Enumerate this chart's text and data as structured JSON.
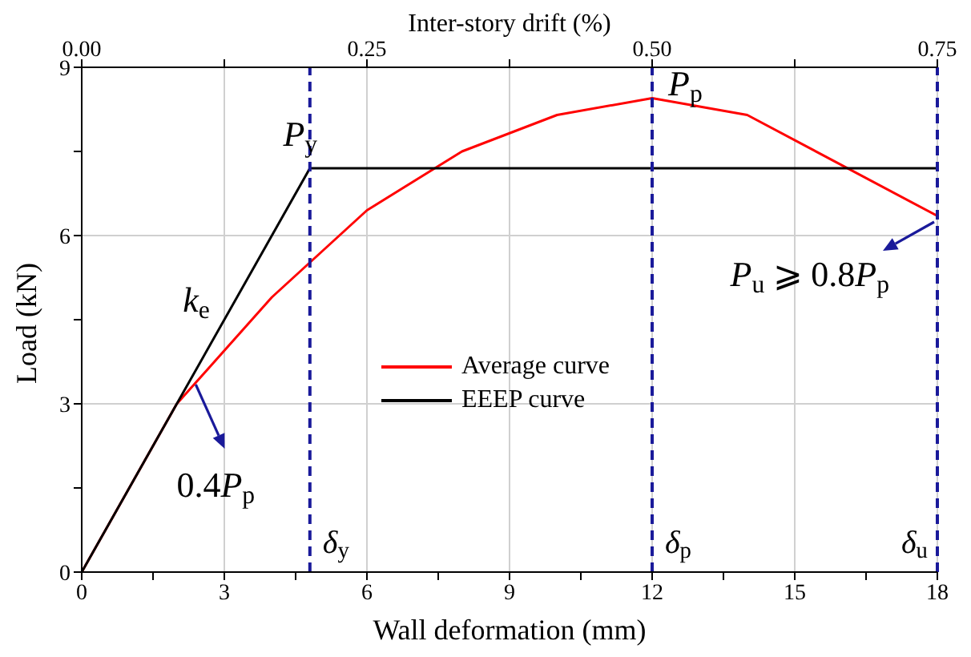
{
  "chart_data": {
    "type": "line",
    "xlabel": "Wall deformation (mm)",
    "ylabel": "Load (kN)",
    "x2label": "Inter-story drift  (%)",
    "xlim": [
      0,
      18
    ],
    "xticks": [
      0,
      {
        "value": 1.5,
        "label": null
      },
      3,
      {
        "value": 4.5,
        "label": null
      },
      6,
      {
        "value": 7.5,
        "label": null
      },
      9,
      {
        "value": 10.5,
        "label": null
      },
      12,
      {
        "value": 13.5,
        "label": null
      },
      15,
      {
        "value": 16.5,
        "label": null
      },
      18
    ],
    "ylim": [
      0,
      9
    ],
    "yticks": [
      0,
      {
        "value": 1.5,
        "label": null
      },
      3,
      {
        "value": 4.5,
        "label": null
      },
      6,
      {
        "value": 7.5,
        "label": null
      },
      9
    ],
    "x2lim": [
      0,
      0.75
    ],
    "x2ticks": [
      {
        "value": 0,
        "label": "0.00"
      },
      {
        "value": 0.125,
        "label": null
      },
      0.25,
      {
        "value": 0.375,
        "label": null
      },
      {
        "value": 0.5,
        "label": "0.50"
      },
      {
        "value": 0.625,
        "label": null
      },
      0.75
    ],
    "grid": true,
    "legend": "center",
    "marker": "none",
    "line_style": "solid",
    "series": [
      {
        "name": "Average curve",
        "color": "#ff0000",
        "x": [
          0,
          2,
          4,
          6,
          8,
          10,
          12,
          14,
          18
        ],
        "values": [
          0,
          3.0,
          4.9,
          6.45,
          7.5,
          8.15,
          8.45,
          8.15,
          6.35
        ]
      },
      {
        "name": "EEEP curve",
        "color": "#000000",
        "x": [
          0,
          4.8,
          18
        ],
        "values": [
          0,
          7.2,
          7.2
        ]
      }
    ],
    "ref_lines": [
      {
        "axis": "x",
        "value": 4.8,
        "label": "δ$_{y}$",
        "color": "#1a1a9a",
        "line_style": "dashed"
      },
      {
        "axis": "x",
        "value": 12,
        "label": "δ$_{p}$",
        "color": "#1a1a9a",
        "line_style": "dashed"
      },
      {
        "axis": "x",
        "value": 18,
        "label": "δ$_{u}$",
        "color": "#1a1a9a",
        "line_style": "dashed"
      }
    ],
    "annotations": [
      {
        "text": "P$_{y}$",
        "x": 4.8,
        "y": 7.2
      },
      {
        "text": "P$_{p}$",
        "x": 12,
        "y": 8.45
      },
      {
        "text": "k$_{e}$",
        "x": 3.1,
        "y": 4.65
      },
      {
        "text": "0.4P$_{p}$",
        "x": 2.4,
        "y": 3.4
      },
      {
        "text": "P$_{u}$ ⩾ 0.8P$_{p}$",
        "x": 18,
        "y": 6.3
      }
    ]
  }
}
